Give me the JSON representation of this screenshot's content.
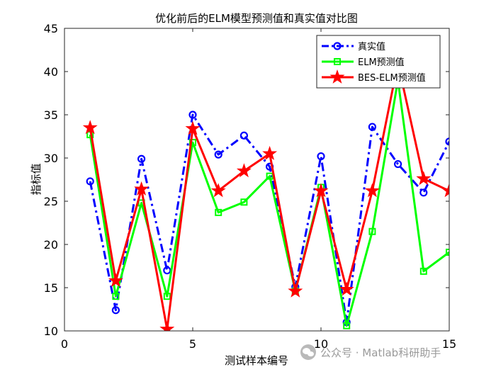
{
  "chart_data": {
    "type": "line",
    "title": "优化前后的ELM模型预测值和真实值对比图",
    "xlabel": "测试样本编号",
    "ylabel": "指标值",
    "xlim": [
      0,
      15
    ],
    "ylim": [
      10,
      45
    ],
    "xticks": [
      0,
      5,
      10,
      15
    ],
    "yticks": [
      10,
      15,
      20,
      25,
      30,
      35,
      40,
      45
    ],
    "x": [
      1,
      2,
      3,
      4,
      5,
      6,
      7,
      8,
      9,
      10,
      11,
      12,
      13,
      14,
      15
    ],
    "grid": false,
    "legend_position": "top-right",
    "series": [
      {
        "name": "真实值",
        "color": "#0000ff",
        "line": "dash-dot",
        "marker": "circle",
        "values": [
          27.3,
          12.4,
          29.9,
          17.0,
          35.0,
          30.4,
          32.6,
          29.0,
          15.1,
          30.2,
          11.0,
          33.6,
          29.3,
          26.0,
          31.9
        ]
      },
      {
        "name": "ELM预测值",
        "color": "#00ff00",
        "line": "solid",
        "marker": "square",
        "values": [
          32.7,
          14.0,
          24.8,
          14.0,
          31.8,
          23.7,
          24.9,
          27.9,
          14.6,
          26.6,
          10.6,
          21.5,
          39.0,
          16.9,
          19.1
        ]
      },
      {
        "name": "BES-ELM预测值",
        "color": "#ff0000",
        "line": "solid",
        "marker": "star",
        "values": [
          33.5,
          15.8,
          26.4,
          10.2,
          33.4,
          26.2,
          28.5,
          30.5,
          14.6,
          26.2,
          14.8,
          26.2,
          41.0,
          27.6,
          26.2
        ]
      }
    ]
  },
  "watermark": {
    "icon": "wechat-icon",
    "text": "公众号 · Matlab科研助手"
  }
}
